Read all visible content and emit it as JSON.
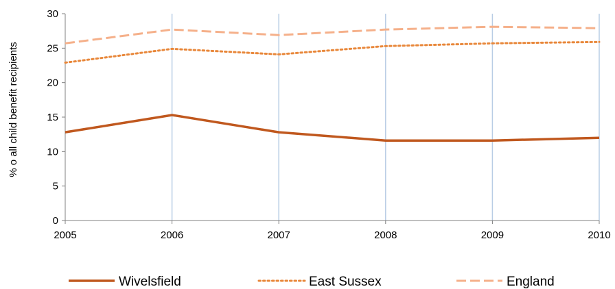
{
  "chart_data": {
    "type": "line",
    "x": [
      "2005",
      "2006",
      "2007",
      "2008",
      "2009",
      "2010"
    ],
    "ylabel": "% o all child benefit recipients",
    "xlabel": "",
    "ylim": [
      0,
      30
    ],
    "yticks": [
      "0",
      "5",
      "10",
      "15",
      "20",
      "25",
      "30"
    ],
    "grid": "vertical",
    "legend_position": "bottom",
    "series": [
      {
        "name": "Wivelsfield",
        "values": [
          12.8,
          15.3,
          12.8,
          11.6,
          11.6,
          12.0
        ],
        "color": "#c0581e",
        "style": "solid"
      },
      {
        "name": "East Sussex",
        "values": [
          22.9,
          24.9,
          24.1,
          25.3,
          25.7,
          25.9
        ],
        "color": "#e8873a",
        "style": "dotted"
      },
      {
        "name": "England",
        "values": [
          25.7,
          27.7,
          26.9,
          27.7,
          28.1,
          27.9
        ],
        "color": "#f5b08a",
        "style": "dashed"
      }
    ]
  }
}
